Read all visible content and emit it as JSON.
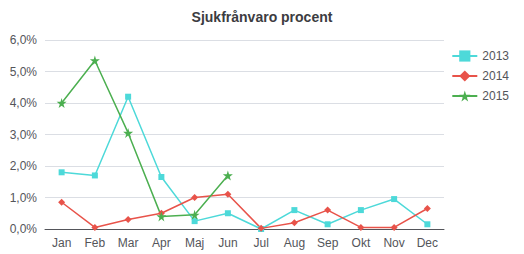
{
  "chart_data": {
    "type": "line",
    "title": "Sjukfrånvaro procent",
    "categories": [
      "Jan",
      "Feb",
      "Mar",
      "Apr",
      "Maj",
      "Jun",
      "Jul",
      "Aug",
      "Sep",
      "Okt",
      "Nov",
      "Dec"
    ],
    "series": [
      {
        "name": "2013",
        "color": "#4DD9D9",
        "marker": "square",
        "values": [
          1.8,
          1.7,
          4.2,
          1.65,
          0.25,
          0.5,
          0.0,
          0.6,
          0.15,
          0.6,
          0.95,
          0.15
        ]
      },
      {
        "name": "2014",
        "color": "#E8534A",
        "marker": "diamond",
        "values": [
          0.85,
          0.05,
          0.3,
          0.5,
          1.0,
          1.1,
          0.02,
          0.2,
          0.6,
          0.05,
          0.05,
          0.65
        ]
      },
      {
        "name": "2015",
        "color": "#4CAF50",
        "marker": "star",
        "values": [
          4.0,
          5.35,
          3.05,
          0.4,
          0.45,
          1.7,
          null,
          null,
          null,
          null,
          null,
          null
        ]
      }
    ],
    "ylim": [
      0.0,
      6.0
    ],
    "yticks": [
      {
        "value": 0.0,
        "label": "0,0%"
      },
      {
        "value": 1.0,
        "label": "1,0%"
      },
      {
        "value": 2.0,
        "label": "2,0%"
      },
      {
        "value": 3.0,
        "label": "3,0%"
      },
      {
        "value": 4.0,
        "label": "4,0%"
      },
      {
        "value": 5.0,
        "label": "5,0%"
      },
      {
        "value": 6.0,
        "label": "6,0%"
      }
    ],
    "grid": true,
    "legend": "upper right"
  }
}
